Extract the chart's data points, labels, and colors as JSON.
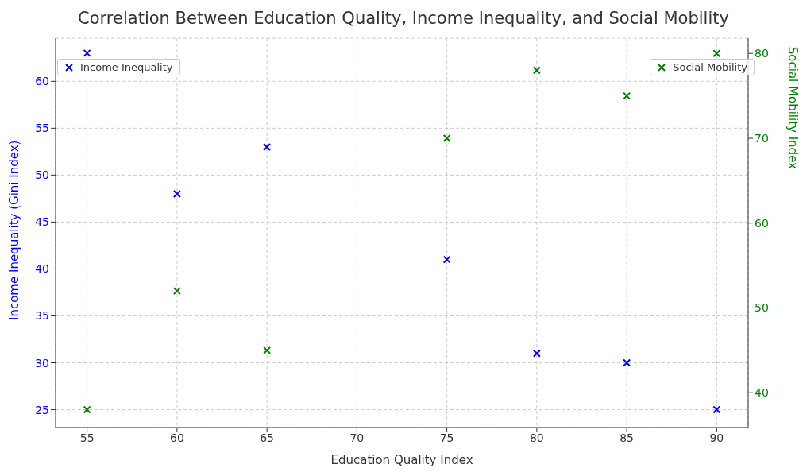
{
  "chart_data": {
    "type": "scatter",
    "title": "Correlation Between Education Quality, Income Inequality, and Social Mobility",
    "xlabel": "Education Quality Index",
    "ylabel": "Income Inequality (Gini Index)",
    "y2label": "Social Mobility Index",
    "x": [
      55,
      60,
      65,
      75,
      80,
      85,
      90
    ],
    "series": [
      {
        "name": "Income Inequality",
        "color": "#0000ff",
        "values": [
          63,
          48,
          53,
          41,
          31,
          30,
          25
        ]
      },
      {
        "name": "Social Mobility",
        "color": "#008000",
        "axis": "y2",
        "values": [
          38,
          52,
          45,
          70,
          78,
          75,
          80
        ]
      }
    ],
    "xlim": [
      53.25,
      91.75
    ],
    "xticks": [
      55,
      60,
      65,
      70,
      75,
      80,
      85,
      90
    ],
    "ylim": [
      23.1,
      64.6
    ],
    "yticks": [
      25,
      30,
      35,
      40,
      45,
      50,
      55,
      60
    ],
    "y2lim": [
      35.9,
      81.8
    ],
    "y2ticks": [
      40,
      50,
      60,
      70,
      80
    ],
    "grid": true,
    "legend": "top",
    "marker": "cross"
  }
}
